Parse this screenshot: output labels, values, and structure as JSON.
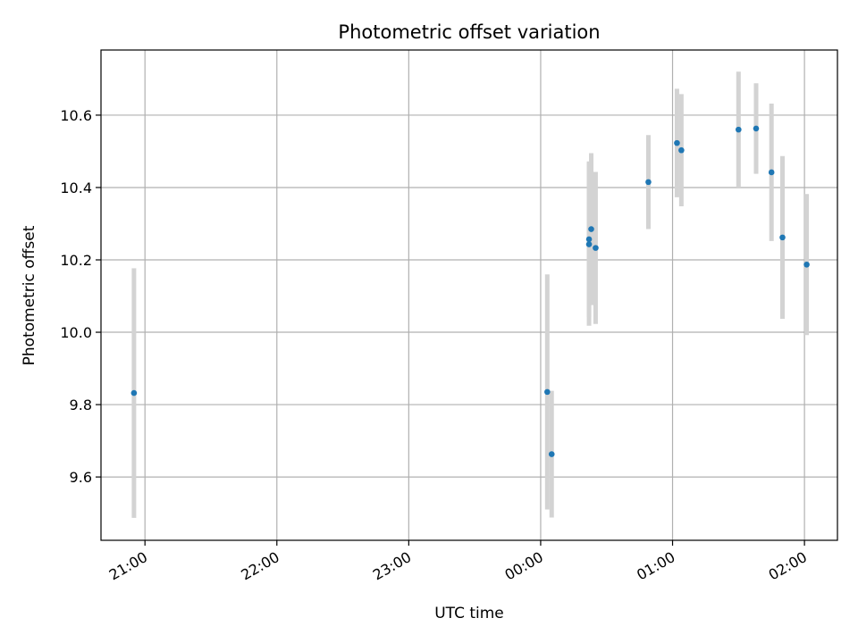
{
  "chart_data": {
    "type": "scatter",
    "title": "Photometric offset variation",
    "xlabel": "UTC time",
    "ylabel": "Photometric offset",
    "x_tick_labels": [
      "21:00",
      "22:00",
      "23:00",
      "00:00",
      "01:00",
      "02:00"
    ],
    "y_tick_labels": [
      "9.6",
      "9.8",
      "10.0",
      "10.2",
      "10.4",
      "10.6"
    ],
    "xlim": [
      "20:40",
      "02:15"
    ],
    "ylim": [
      9.425,
      10.78
    ],
    "grid": true,
    "marker_color": "#1f77b4",
    "errorbar_color": "#d3d3d3",
    "points": [
      {
        "time": "20:55",
        "y": 9.832,
        "err": 0.345
      },
      {
        "time": "00:03",
        "y": 9.835,
        "err": 0.325
      },
      {
        "time": "00:05",
        "y": 9.663,
        "err": 0.175
      },
      {
        "time": "00:22",
        "y": 10.257,
        "err": 0.215
      },
      {
        "time": "00:22",
        "y": 10.243,
        "err": 0.225
      },
      {
        "time": "00:23",
        "y": 10.285,
        "err": 0.21
      },
      {
        "time": "00:25",
        "y": 10.233,
        "err": 0.21
      },
      {
        "time": "00:49",
        "y": 10.415,
        "err": 0.13
      },
      {
        "time": "01:02",
        "y": 10.523,
        "err": 0.15
      },
      {
        "time": "01:04",
        "y": 10.503,
        "err": 0.155
      },
      {
        "time": "01:30",
        "y": 10.56,
        "err": 0.16
      },
      {
        "time": "01:38",
        "y": 10.563,
        "err": 0.125
      },
      {
        "time": "01:45",
        "y": 10.442,
        "err": 0.19
      },
      {
        "time": "01:50",
        "y": 10.262,
        "err": 0.225
      },
      {
        "time": "02:01",
        "y": 10.187,
        "err": 0.195
      }
    ]
  }
}
